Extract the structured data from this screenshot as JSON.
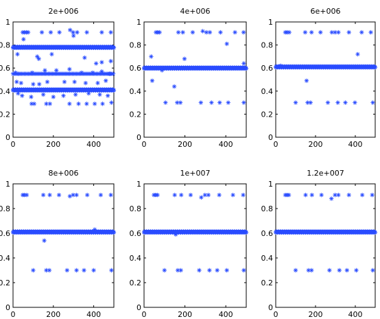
{
  "chart_data": [
    {
      "type": "scatter",
      "title": "2e+006",
      "xlim": [
        0,
        500
      ],
      "ylim": [
        0,
        1
      ],
      "xticks": [
        0,
        200,
        400
      ],
      "yticks": [
        0,
        0.2,
        0.4,
        0.6,
        0.8,
        1
      ],
      "marker": "*",
      "color": "#2a4cff",
      "bands": [
        {
          "y": 0.78,
          "x_from": 0,
          "x_to": 500,
          "density": "continuous"
        },
        {
          "y": 0.55,
          "x_from": 0,
          "x_to": 500,
          "density": "sparse"
        },
        {
          "y": 0.41,
          "x_from": 0,
          "x_to": 500,
          "density": "continuous"
        }
      ],
      "points": [
        [
          48,
          0.91
        ],
        [
          57,
          0.91
        ],
        [
          66,
          0.91
        ],
        [
          75,
          0.91
        ],
        [
          143,
          0.91
        ],
        [
          187,
          0.91
        ],
        [
          230,
          0.91
        ],
        [
          283,
          0.93
        ],
        [
          298,
          0.91
        ],
        [
          318,
          0.91
        ],
        [
          366,
          0.91
        ],
        [
          440,
          0.91
        ],
        [
          485,
          0.91
        ],
        [
          22,
          0.72
        ],
        [
          52,
          0.85
        ],
        [
          120,
          0.7
        ],
        [
          128,
          0.68
        ],
        [
          192,
          0.72
        ],
        [
          300,
          0.88
        ],
        [
          355,
          0.69
        ],
        [
          412,
          0.64
        ],
        [
          440,
          0.65
        ],
        [
          485,
          0.66
        ],
        [
          12,
          0.56
        ],
        [
          28,
          0.55
        ],
        [
          95,
          0.56
        ],
        [
          158,
          0.58
        ],
        [
          215,
          0.58
        ],
        [
          280,
          0.59
        ],
        [
          340,
          0.56
        ],
        [
          395,
          0.56
        ],
        [
          440,
          0.57
        ],
        [
          480,
          0.55
        ],
        [
          18,
          0.48
        ],
        [
          40,
          0.47
        ],
        [
          100,
          0.46
        ],
        [
          130,
          0.46
        ],
        [
          170,
          0.48
        ],
        [
          255,
          0.48
        ],
        [
          305,
          0.48
        ],
        [
          360,
          0.47
        ],
        [
          420,
          0.47
        ],
        [
          460,
          0.49
        ],
        [
          25,
          0.38
        ],
        [
          45,
          0.36
        ],
        [
          90,
          0.35
        ],
        [
          150,
          0.37
        ],
        [
          200,
          0.35
        ],
        [
          250,
          0.36
        ],
        [
          310,
          0.37
        ],
        [
          375,
          0.38
        ],
        [
          430,
          0.37
        ],
        [
          470,
          0.36
        ],
        [
          92,
          0.29
        ],
        [
          105,
          0.29
        ],
        [
          165,
          0.29
        ],
        [
          183,
          0.29
        ],
        [
          280,
          0.29
        ],
        [
          325,
          0.29
        ],
        [
          365,
          0.29
        ],
        [
          405,
          0.29
        ],
        [
          444,
          0.29
        ],
        [
          488,
          0.3
        ]
      ]
    },
    {
      "type": "scatter",
      "title": "4e+006",
      "xlim": [
        0,
        500
      ],
      "ylim": [
        0,
        1
      ],
      "xticks": [
        0,
        200,
        400
      ],
      "yticks": [
        0,
        0.2,
        0.4,
        0.6,
        0.8,
        1
      ],
      "marker": "*",
      "color": "#2a4cff",
      "bands": [
        {
          "y": 0.6,
          "x_from": 0,
          "x_to": 500,
          "density": "continuous"
        }
      ],
      "points": [
        [
          58,
          0.91
        ],
        [
          67,
          0.91
        ],
        [
          76,
          0.91
        ],
        [
          168,
          0.91
        ],
        [
          190,
          0.91
        ],
        [
          238,
          0.91
        ],
        [
          287,
          0.92
        ],
        [
          305,
          0.91
        ],
        [
          322,
          0.91
        ],
        [
          374,
          0.91
        ],
        [
          445,
          0.91
        ],
        [
          487,
          0.91
        ],
        [
          35,
          0.7
        ],
        [
          40,
          0.49
        ],
        [
          88,
          0.58
        ],
        [
          148,
          0.44
        ],
        [
          198,
          0.68
        ],
        [
          405,
          0.81
        ],
        [
          488,
          0.64
        ],
        [
          105,
          0.3
        ],
        [
          162,
          0.3
        ],
        [
          178,
          0.3
        ],
        [
          278,
          0.3
        ],
        [
          330,
          0.3
        ],
        [
          370,
          0.3
        ],
        [
          412,
          0.3
        ],
        [
          488,
          0.3
        ]
      ]
    },
    {
      "type": "scatter",
      "title": "6e+006",
      "xlim": [
        0,
        500
      ],
      "ylim": [
        0,
        1
      ],
      "xticks": [
        0,
        200,
        400
      ],
      "yticks": [
        0,
        0.2,
        0.4,
        0.6,
        0.8,
        1
      ],
      "marker": "*",
      "color": "#2a4cff",
      "bands": [
        {
          "y": 0.61,
          "x_from": 0,
          "x_to": 500,
          "density": "continuous"
        }
      ],
      "points": [
        [
          48,
          0.91
        ],
        [
          57,
          0.91
        ],
        [
          68,
          0.91
        ],
        [
          148,
          0.91
        ],
        [
          180,
          0.91
        ],
        [
          225,
          0.91
        ],
        [
          282,
          0.91
        ],
        [
          298,
          0.91
        ],
        [
          315,
          0.91
        ],
        [
          368,
          0.91
        ],
        [
          432,
          0.91
        ],
        [
          478,
          0.91
        ],
        [
          10,
          0.61
        ],
        [
          25,
          0.62
        ],
        [
          155,
          0.49
        ],
        [
          412,
          0.72
        ],
        [
          100,
          0.3
        ],
        [
          160,
          0.3
        ],
        [
          175,
          0.3
        ],
        [
          262,
          0.3
        ],
        [
          312,
          0.3
        ],
        [
          350,
          0.3
        ],
        [
          398,
          0.3
        ],
        [
          488,
          0.3
        ]
      ]
    },
    {
      "type": "scatter",
      "title": "8e+006",
      "xlim": [
        0,
        500
      ],
      "ylim": [
        0,
        1
      ],
      "xticks": [
        0,
        200,
        400
      ],
      "yticks": [
        0,
        0.2,
        0.4,
        0.6,
        0.8,
        1
      ],
      "marker": "*",
      "color": "#2a4cff",
      "bands": [
        {
          "y": 0.61,
          "x_from": 0,
          "x_to": 500,
          "density": "continuous"
        }
      ],
      "points": [
        [
          48,
          0.91
        ],
        [
          57,
          0.91
        ],
        [
          68,
          0.91
        ],
        [
          150,
          0.91
        ],
        [
          182,
          0.91
        ],
        [
          228,
          0.91
        ],
        [
          282,
          0.9
        ],
        [
          298,
          0.91
        ],
        [
          315,
          0.91
        ],
        [
          368,
          0.91
        ],
        [
          435,
          0.91
        ],
        [
          485,
          0.91
        ],
        [
          155,
          0.54
        ],
        [
          405,
          0.63
        ],
        [
          100,
          0.3
        ],
        [
          165,
          0.3
        ],
        [
          180,
          0.3
        ],
        [
          268,
          0.3
        ],
        [
          315,
          0.3
        ],
        [
          352,
          0.3
        ],
        [
          400,
          0.3
        ],
        [
          488,
          0.3
        ]
      ]
    },
    {
      "type": "scatter",
      "title": "1e+007",
      "xlim": [
        0,
        500
      ],
      "ylim": [
        0,
        1
      ],
      "xticks": [
        0,
        200,
        400
      ],
      "yticks": [
        0,
        0.2,
        0.4,
        0.6,
        0.8,
        1
      ],
      "marker": "*",
      "color": "#2a4cff",
      "bands": [
        {
          "y": 0.61,
          "x_from": 0,
          "x_to": 500,
          "density": "continuous"
        }
      ],
      "points": [
        [
          48,
          0.91
        ],
        [
          57,
          0.91
        ],
        [
          66,
          0.91
        ],
        [
          150,
          0.91
        ],
        [
          182,
          0.91
        ],
        [
          228,
          0.91
        ],
        [
          280,
          0.89
        ],
        [
          298,
          0.91
        ],
        [
          315,
          0.91
        ],
        [
          368,
          0.91
        ],
        [
          435,
          0.91
        ],
        [
          485,
          0.91
        ],
        [
          155,
          0.59
        ],
        [
          100,
          0.3
        ],
        [
          165,
          0.3
        ],
        [
          180,
          0.3
        ],
        [
          270,
          0.3
        ],
        [
          320,
          0.3
        ],
        [
          358,
          0.3
        ],
        [
          405,
          0.3
        ],
        [
          488,
          0.3
        ]
      ]
    },
    {
      "type": "scatter",
      "title": "1.2e+007",
      "xlim": [
        0,
        500
      ],
      "ylim": [
        0,
        1
      ],
      "xticks": [
        0,
        200,
        400
      ],
      "yticks": [
        0,
        0.2,
        0.4,
        0.6,
        0.8,
        1
      ],
      "marker": "*",
      "color": "#2a4cff",
      "bands": [
        {
          "y": 0.61,
          "x_from": 0,
          "x_to": 500,
          "density": "continuous"
        }
      ],
      "points": [
        [
          48,
          0.91
        ],
        [
          57,
          0.91
        ],
        [
          66,
          0.91
        ],
        [
          150,
          0.91
        ],
        [
          182,
          0.91
        ],
        [
          230,
          0.91
        ],
        [
          280,
          0.88
        ],
        [
          298,
          0.91
        ],
        [
          315,
          0.91
        ],
        [
          368,
          0.91
        ],
        [
          435,
          0.91
        ],
        [
          485,
          0.91
        ],
        [
          100,
          0.3
        ],
        [
          165,
          0.3
        ],
        [
          180,
          0.3
        ],
        [
          270,
          0.3
        ],
        [
          320,
          0.3
        ],
        [
          358,
          0.3
        ],
        [
          405,
          0.3
        ],
        [
          488,
          0.3
        ]
      ]
    }
  ]
}
